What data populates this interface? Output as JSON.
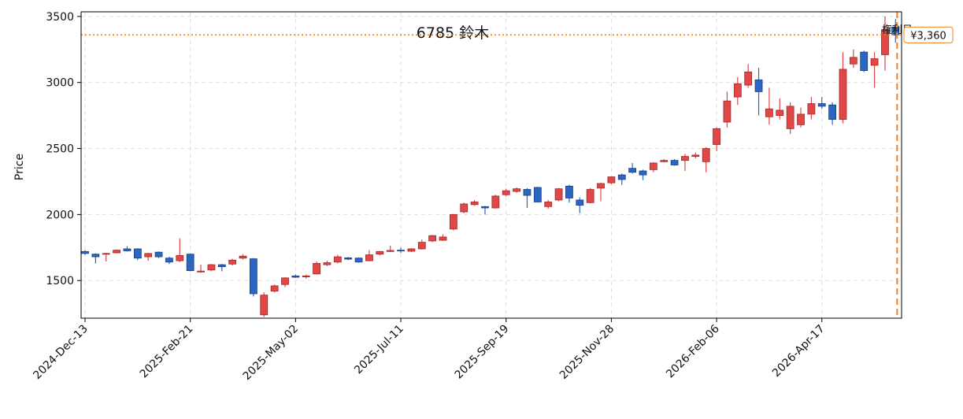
{
  "chart_data": {
    "type": "candlestick",
    "title": "6785 鈴木",
    "y_label": "Price",
    "x": [
      "2024-Dec-13",
      "2024-Dec-20",
      "2024-Dec-27",
      "2025-Jan-03",
      "2025-Jan-10",
      "2025-Jan-17",
      "2025-Jan-24",
      "2025-Jan-31",
      "2025-Feb-07",
      "2025-Feb-14",
      "2025-Feb-21",
      "2025-Feb-28",
      "2025-Mar-07",
      "2025-Mar-14",
      "2025-Mar-21",
      "2025-Mar-28",
      "2025-Apr-04",
      "2025-Apr-11",
      "2025-Apr-18",
      "2025-Apr-25",
      "2025-May-02",
      "2025-May-09",
      "2025-May-16",
      "2025-May-23",
      "2025-May-30",
      "2025-Jun-06",
      "2025-Jun-13",
      "2025-Jun-20",
      "2025-Jun-27",
      "2025-Jul-04",
      "2025-Jul-11",
      "2025-Jul-18",
      "2025-Jul-25",
      "2025-Aug-01",
      "2025-Aug-08",
      "2025-Aug-15",
      "2025-Aug-22",
      "2025-Aug-29",
      "2025-Sep-05",
      "2025-Sep-12",
      "2025-Sep-19",
      "2025-Sep-26",
      "2025-Oct-03",
      "2025-Oct-10",
      "2025-Oct-17",
      "2025-Oct-24",
      "2025-Oct-31",
      "2025-Nov-07",
      "2025-Nov-14",
      "2025-Nov-21",
      "2025-Nov-28",
      "2025-Dec-05",
      "2025-Dec-12",
      "2025-Dec-19",
      "2025-Dec-26",
      "2026-Jan-02",
      "2026-Jan-09",
      "2026-Jan-16",
      "2026-Jan-23",
      "2026-Jan-30",
      "2026-Feb-06",
      "2026-Feb-13",
      "2026-Feb-20",
      "2026-Feb-27",
      "2026-Mar-06",
      "2026-Mar-13",
      "2026-Mar-20",
      "2026-Mar-27",
      "2026-Apr-03",
      "2026-Apr-10",
      "2026-Apr-17",
      "2026-Apr-24",
      "2026-May-01",
      "2026-May-08",
      "2026-May-15",
      "2026-May-22",
      "2026-May-29",
      "2026-Jun-05"
    ],
    "open": [
      1720,
      1700,
      1700,
      1710,
      1740,
      1740,
      1680,
      1715,
      1670,
      1650,
      1700,
      1565,
      1580,
      1620,
      1625,
      1670,
      1665,
      1240,
      1420,
      1470,
      1535,
      1528,
      1550,
      1620,
      1640,
      1672,
      1670,
      1650,
      1700,
      1720,
      1730,
      1722,
      1740,
      1800,
      1805,
      1890,
      2020,
      2075,
      2060,
      2050,
      2150,
      2175,
      2190,
      2205,
      2060,
      2110,
      2215,
      2110,
      2090,
      2200,
      2240,
      2300,
      2350,
      2330,
      2340,
      2400,
      2410,
      2410,
      2440,
      2400,
      2530,
      2700,
      2890,
      2980,
      3020,
      2740,
      2750,
      2650,
      2680,
      2760,
      2840,
      2830,
      2720,
      3140,
      3230,
      3130,
      3210,
      3420
    ],
    "high": [
      1730,
      1705,
      1710,
      1735,
      1760,
      1745,
      1710,
      1720,
      1680,
      1820,
      1705,
      1620,
      1625,
      1625,
      1665,
      1700,
      1670,
      1410,
      1470,
      1525,
      1545,
      1545,
      1645,
      1650,
      1695,
      1678,
      1675,
      1730,
      1725,
      1765,
      1750,
      1745,
      1810,
      1845,
      1850,
      2005,
      2090,
      2110,
      2065,
      2150,
      2195,
      2205,
      2200,
      2210,
      2110,
      2200,
      2225,
      2130,
      2200,
      2240,
      2290,
      2310,
      2390,
      2340,
      2395,
      2420,
      2420,
      2460,
      2470,
      2510,
      2660,
      2930,
      3040,
      3140,
      3110,
      2960,
      2880,
      2850,
      2810,
      2890,
      2890,
      2850,
      3230,
      3250,
      3240,
      3230,
      3500,
      3480
    ],
    "low": [
      1695,
      1630,
      1645,
      1705,
      1720,
      1655,
      1650,
      1670,
      1625,
      1640,
      1570,
      1560,
      1570,
      1570,
      1615,
      1660,
      1380,
      1225,
      1410,
      1450,
      1520,
      1515,
      1545,
      1610,
      1630,
      1655,
      1635,
      1645,
      1690,
      1715,
      1710,
      1715,
      1735,
      1790,
      1800,
      1880,
      2010,
      2065,
      2000,
      2045,
      2140,
      2165,
      2050,
      2090,
      2045,
      2100,
      2090,
      2010,
      2085,
      2100,
      2230,
      2225,
      2310,
      2260,
      2320,
      2395,
      2370,
      2330,
      2425,
      2320,
      2480,
      2660,
      2830,
      2960,
      2750,
      2680,
      2720,
      2610,
      2660,
      2720,
      2800,
      2680,
      2690,
      3110,
      3080,
      2960,
      3090,
      3300
    ],
    "close": [
      1705,
      1680,
      1705,
      1730,
      1725,
      1670,
      1705,
      1680,
      1640,
      1690,
      1575,
      1572,
      1620,
      1605,
      1655,
      1685,
      1400,
      1390,
      1460,
      1520,
      1525,
      1535,
      1630,
      1635,
      1680,
      1662,
      1640,
      1695,
      1720,
      1728,
      1725,
      1740,
      1790,
      1840,
      1830,
      2000,
      2080,
      2095,
      2050,
      2140,
      2180,
      2195,
      2145,
      2095,
      2095,
      2195,
      2125,
      2070,
      2190,
      2235,
      2285,
      2265,
      2320,
      2300,
      2390,
      2410,
      2375,
      2440,
      2450,
      2500,
      2650,
      2860,
      2990,
      3080,
      2930,
      2800,
      2790,
      2820,
      2760,
      2840,
      2820,
      2720,
      3100,
      3190,
      3090,
      3180,
      3400,
      3360
    ],
    "up_color": "#e04848",
    "down_color": "#2a66c4",
    "ylim": [
      1215,
      3535
    ],
    "yticks": [
      1500,
      2000,
      2500,
      3000,
      3500
    ],
    "xticks": [
      "2024-Dec-13",
      "2025-Feb-21",
      "2025-May-02",
      "2025-Jul-11",
      "2025-Sep-19",
      "2025-Nov-28",
      "2026-Feb-06",
      "2026-Apr-17"
    ],
    "grid": true,
    "hline": {
      "value": 3360,
      "label": "¥3,360",
      "color": "#f08020"
    },
    "vline": {
      "x": "2026-Jun-05",
      "label": "権利日",
      "color": "#f08020"
    }
  }
}
